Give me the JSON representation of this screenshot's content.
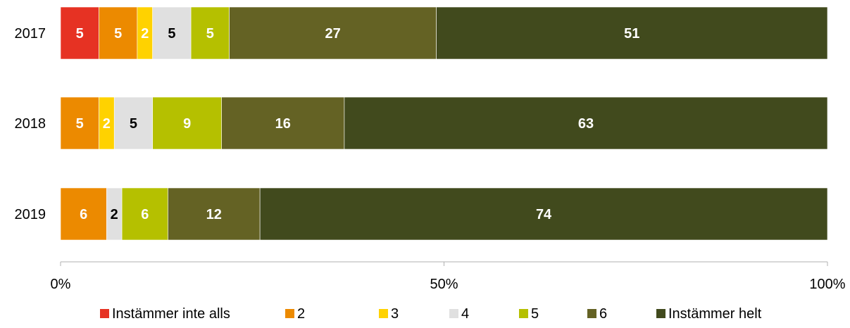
{
  "chart_data": {
    "type": "bar",
    "orientation": "horizontal",
    "stacked": true,
    "normalized": true,
    "categories": [
      "2017",
      "2018",
      "2019"
    ],
    "series": [
      {
        "name": "Instämmer inte alls",
        "color": "#e63223",
        "label_color": "#ffffff",
        "values": [
          5,
          0,
          0
        ]
      },
      {
        "name": "2",
        "color": "#ec8a00",
        "label_color": "#ffffff",
        "values": [
          5,
          5,
          6
        ]
      },
      {
        "name": "3",
        "color": "#ffd200",
        "label_color": "#ffffff",
        "values": [
          2,
          2,
          0
        ]
      },
      {
        "name": "4",
        "color": "#e0e0e0",
        "label_color": "#000000",
        "values": [
          5,
          5,
          2
        ]
      },
      {
        "name": "5",
        "color": "#b5c000",
        "label_color": "#ffffff",
        "values": [
          5,
          9,
          6
        ]
      },
      {
        "name": "6",
        "color": "#646224",
        "label_color": "#ffffff",
        "values": [
          27,
          16,
          12
        ]
      },
      {
        "name": "Instämmer helt",
        "color": "#414a1d",
        "label_color": "#ffffff",
        "values": [
          51,
          63,
          74
        ]
      }
    ],
    "xlim": [
      0,
      100
    ],
    "xticks": [
      "0%",
      "50%",
      "100%"
    ],
    "grid": false,
    "legend_position": "bottom"
  }
}
